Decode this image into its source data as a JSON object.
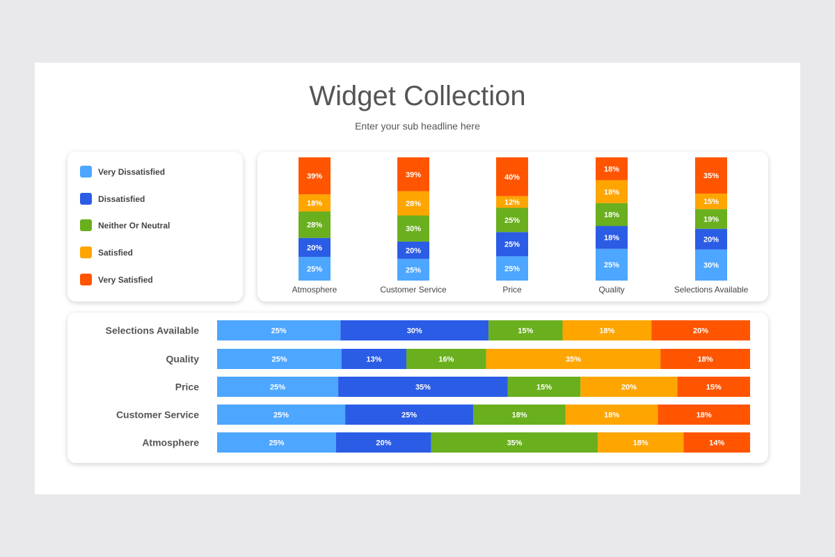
{
  "header": {
    "title": "Widget Collection",
    "subtitle": "Enter your sub headline here"
  },
  "legend": [
    {
      "label": "Very Dissatisfied",
      "color": "#4da6ff"
    },
    {
      "label": "Dissatisfied",
      "color": "#2b5ce6"
    },
    {
      "label": "Neither Or Neutral",
      "color": "#6aaf1e"
    },
    {
      "label": "Satisfied",
      "color": "#ffa500"
    },
    {
      "label": "Very Satisfied",
      "color": "#ff5500"
    }
  ],
  "chart_data": [
    {
      "type": "bar",
      "orientation": "vertical",
      "stacked": true,
      "categories": [
        "Atmosphere",
        "Customer Service",
        "Price",
        "Quality",
        "Selections Available"
      ],
      "series": [
        {
          "name": "Very Dissatisfied",
          "values": [
            25,
            25,
            25,
            25,
            30
          ]
        },
        {
          "name": "Dissatisfied",
          "values": [
            20,
            20,
            25,
            18,
            20
          ]
        },
        {
          "name": "Neither Or Neutral",
          "values": [
            28,
            30,
            25,
            18,
            19
          ]
        },
        {
          "name": "Satisfied",
          "values": [
            18,
            28,
            12,
            18,
            15
          ]
        },
        {
          "name": "Very Satisfied",
          "values": [
            39,
            39,
            40,
            18,
            35
          ]
        }
      ],
      "unit": "%"
    },
    {
      "type": "bar",
      "orientation": "horizontal",
      "stacked": true,
      "categories": [
        "Selections Available",
        "Quality",
        "Price",
        "Customer Service",
        "Atmosphere"
      ],
      "series": [
        {
          "name": "Very Dissatisfied",
          "values": [
            25,
            25,
            25,
            25,
            25
          ]
        },
        {
          "name": "Dissatisfied",
          "values": [
            30,
            13,
            35,
            25,
            20
          ]
        },
        {
          "name": "Neither Or Neutral",
          "values": [
            15,
            16,
            15,
            18,
            35
          ]
        },
        {
          "name": "Satisfied",
          "values": [
            18,
            35,
            20,
            18,
            18
          ]
        },
        {
          "name": "Very Satisfied",
          "values": [
            20,
            18,
            15,
            18,
            14
          ]
        }
      ],
      "unit": "%"
    }
  ]
}
